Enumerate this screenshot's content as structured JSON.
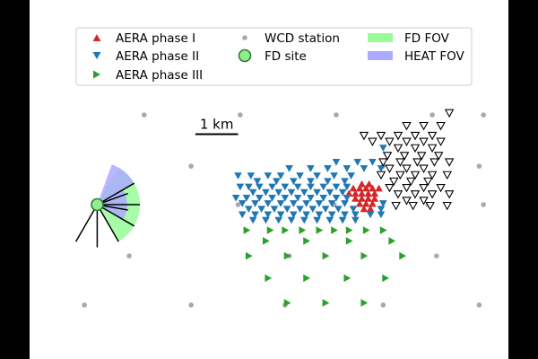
{
  "chart_data": {
    "type": "scatter",
    "units": "km",
    "xlim": [
      -6.35,
      4.1
    ],
    "ylim": [
      -3.0,
      3.0
    ],
    "scale_bar": {
      "label": "1 km",
      "length_km": 1.0,
      "x": -2.85,
      "y": 1.65
    },
    "legend": {
      "placement": "top",
      "entries": [
        {
          "label": "AERA phase I",
          "key": "phase1"
        },
        {
          "label": "AERA phase II",
          "key": "phase2"
        },
        {
          "label": "AERA phase III",
          "key": "phase3"
        },
        {
          "label": "WCD station",
          "key": "wcd"
        },
        {
          "label": "FD site",
          "key": "fd"
        },
        {
          "label": "",
          "key": "blank"
        },
        {
          "label": "FD FOV",
          "key": "fdfov"
        },
        {
          "label": "HEAT FOV",
          "key": "heatfov"
        }
      ]
    },
    "colors": {
      "phase1": "#d62728",
      "phase2": "#1f77b4",
      "phase3": "#2ca02c",
      "outline": "#000000",
      "wcd": "#aaaaaa",
      "fd_site": "#90ee90",
      "fd_fov": "#98fb98",
      "heat_fov": "#aaaaff",
      "fd_lines": "#000000"
    },
    "fd_site": {
      "x": -5.15,
      "y": 0.0
    },
    "fd_fov": {
      "radius": 1.0,
      "from_deg": -60,
      "to_deg": 60
    },
    "heat_fov": {
      "radius": 0.7,
      "from_deg": 30,
      "to_deg": 70,
      "inner_radius": 0.7,
      "inner_from_deg": -30,
      "inner_to_deg": 30
    },
    "fd_bays_deg": [
      -120,
      -90,
      -60,
      -30,
      0,
      30
    ],
    "fd_bay_length": 1.0,
    "wcd_stations": [
      {
        "x": -4.05,
        "y": 2.1
      },
      {
        "x": -1.8,
        "y": 2.1
      },
      {
        "x": 0.45,
        "y": 2.1
      },
      {
        "x": 2.7,
        "y": 2.1
      },
      {
        "x": 3.9,
        "y": 2.1
      },
      {
        "x": -2.95,
        "y": 0.9
      },
      {
        "x": 1.55,
        "y": 0.9
      },
      {
        "x": 3.8,
        "y": 0.9
      },
      {
        "x": -1.85,
        "y": 0.0
      },
      {
        "x": 0.4,
        "y": 0.0
      },
      {
        "x": 2.6,
        "y": 0.0
      },
      {
        "x": 3.9,
        "y": 0.0
      },
      {
        "x": -4.4,
        "y": -1.2
      },
      {
        "x": -0.65,
        "y": -1.2
      },
      {
        "x": 2.8,
        "y": -1.2
      },
      {
        "x": -5.45,
        "y": -2.35
      },
      {
        "x": -2.95,
        "y": -2.35
      },
      {
        "x": -0.75,
        "y": -2.35
      },
      {
        "x": 1.55,
        "y": -2.35
      },
      {
        "x": 3.8,
        "y": -2.35
      }
    ],
    "series": [
      {
        "key": "phase1",
        "marker": "triangle-up",
        "points": [
          {
            "x": 1.05,
            "y": 0.48
          },
          {
            "x": 1.22,
            "y": 0.48
          },
          {
            "x": 0.85,
            "y": 0.38
          },
          {
            "x": 1.0,
            "y": 0.38
          },
          {
            "x": 1.15,
            "y": 0.38
          },
          {
            "x": 1.3,
            "y": 0.38
          },
          {
            "x": 1.45,
            "y": 0.38
          },
          {
            "x": 0.75,
            "y": 0.26
          },
          {
            "x": 0.9,
            "y": 0.26
          },
          {
            "x": 1.05,
            "y": 0.26
          },
          {
            "x": 1.2,
            "y": 0.26
          },
          {
            "x": 1.35,
            "y": 0.26
          },
          {
            "x": 0.9,
            "y": 0.14
          },
          {
            "x": 1.05,
            "y": 0.14
          },
          {
            "x": 1.2,
            "y": 0.14
          },
          {
            "x": 1.35,
            "y": 0.14
          },
          {
            "x": 1.0,
            "y": 0.02
          },
          {
            "x": 1.15,
            "y": 0.02
          },
          {
            "x": 1.3,
            "y": 0.02
          },
          {
            "x": 1.1,
            "y": -0.1
          },
          {
            "x": 1.25,
            "y": -0.1
          }
        ]
      },
      {
        "key": "phase2",
        "marker": "triangle-down",
        "points": [
          {
            "x": 1.55,
            "y": 1.33
          },
          {
            "x": 0.45,
            "y": 1.0
          },
          {
            "x": 0.95,
            "y": 1.0
          },
          {
            "x": 1.3,
            "y": 1.0
          },
          {
            "x": -0.65,
            "y": 0.85
          },
          {
            "x": -0.15,
            "y": 0.85
          },
          {
            "x": 0.25,
            "y": 0.85
          },
          {
            "x": 0.7,
            "y": 0.85
          },
          {
            "x": 1.1,
            "y": 0.85
          },
          {
            "x": 1.5,
            "y": 0.85
          },
          {
            "x": -1.85,
            "y": 0.68
          },
          {
            "x": -1.55,
            "y": 0.68
          },
          {
            "x": -1.15,
            "y": 0.68
          },
          {
            "x": -0.85,
            "y": 0.68
          },
          {
            "x": -0.4,
            "y": 0.68
          },
          {
            "x": 0.0,
            "y": 0.68
          },
          {
            "x": 0.4,
            "y": 0.68
          },
          {
            "x": 0.8,
            "y": 0.68
          },
          {
            "x": -1.4,
            "y": 0.55
          },
          {
            "x": -0.95,
            "y": 0.55
          },
          {
            "x": -0.55,
            "y": 0.55
          },
          {
            "x": -0.15,
            "y": 0.55
          },
          {
            "x": 0.25,
            "y": 0.55
          },
          {
            "x": 0.65,
            "y": 0.55
          },
          {
            "x": -1.8,
            "y": 0.42
          },
          {
            "x": -1.6,
            "y": 0.42
          },
          {
            "x": -1.35,
            "y": 0.42
          },
          {
            "x": -1.05,
            "y": 0.42
          },
          {
            "x": -0.75,
            "y": 0.42
          },
          {
            "x": -0.45,
            "y": 0.42
          },
          {
            "x": -0.15,
            "y": 0.42
          },
          {
            "x": 0.15,
            "y": 0.42
          },
          {
            "x": 0.45,
            "y": 0.42
          },
          {
            "x": 0.7,
            "y": 0.42
          },
          {
            "x": -1.5,
            "y": 0.29
          },
          {
            "x": -1.2,
            "y": 0.29
          },
          {
            "x": -0.9,
            "y": 0.29
          },
          {
            "x": -0.6,
            "y": 0.29
          },
          {
            "x": -0.3,
            "y": 0.29
          },
          {
            "x": 0.0,
            "y": 0.29
          },
          {
            "x": 0.3,
            "y": 0.29
          },
          {
            "x": 0.6,
            "y": 0.29
          },
          {
            "x": -1.9,
            "y": 0.16
          },
          {
            "x": -1.65,
            "y": 0.16
          },
          {
            "x": -1.35,
            "y": 0.16
          },
          {
            "x": -1.05,
            "y": 0.16
          },
          {
            "x": -0.75,
            "y": 0.16
          },
          {
            "x": -0.45,
            "y": 0.16
          },
          {
            "x": -0.15,
            "y": 0.16
          },
          {
            "x": 0.15,
            "y": 0.16
          },
          {
            "x": 0.45,
            "y": 0.16
          },
          {
            "x": 0.7,
            "y": 0.16
          },
          {
            "x": -1.75,
            "y": 0.03
          },
          {
            "x": -1.45,
            "y": 0.03
          },
          {
            "x": -1.15,
            "y": 0.03
          },
          {
            "x": -0.85,
            "y": 0.03
          },
          {
            "x": -0.55,
            "y": 0.03
          },
          {
            "x": -0.25,
            "y": 0.03
          },
          {
            "x": 0.05,
            "y": 0.03
          },
          {
            "x": 0.35,
            "y": 0.03
          },
          {
            "x": 0.65,
            "y": 0.03
          },
          {
            "x": 1.55,
            "y": 0.03
          },
          {
            "x": -1.6,
            "y": -0.1
          },
          {
            "x": -1.3,
            "y": -0.1
          },
          {
            "x": -1.0,
            "y": -0.1
          },
          {
            "x": -0.7,
            "y": -0.1
          },
          {
            "x": -0.4,
            "y": -0.1
          },
          {
            "x": -0.1,
            "y": -0.1
          },
          {
            "x": 0.2,
            "y": -0.1
          },
          {
            "x": 0.5,
            "y": -0.1
          },
          {
            "x": 0.85,
            "y": -0.1
          },
          {
            "x": 1.5,
            "y": -0.1
          },
          {
            "x": -1.75,
            "y": -0.23
          },
          {
            "x": -1.45,
            "y": -0.23
          },
          {
            "x": -1.15,
            "y": -0.23
          },
          {
            "x": -0.85,
            "y": -0.23
          },
          {
            "x": -0.55,
            "y": -0.23
          },
          {
            "x": -0.25,
            "y": -0.23
          },
          {
            "x": 0.05,
            "y": -0.23
          },
          {
            "x": 0.35,
            "y": -0.23
          },
          {
            "x": 0.65,
            "y": -0.23
          },
          {
            "x": 0.9,
            "y": -0.23
          },
          {
            "x": 1.25,
            "y": -0.23
          },
          {
            "x": 1.5,
            "y": -0.23
          },
          {
            "x": -1.5,
            "y": -0.36
          },
          {
            "x": -1.2,
            "y": -0.36
          },
          {
            "x": -0.9,
            "y": -0.36
          },
          {
            "x": -0.6,
            "y": -0.36
          },
          {
            "x": -0.3,
            "y": -0.36
          },
          {
            "x": 0.0,
            "y": -0.36
          },
          {
            "x": 0.3,
            "y": -0.36
          },
          {
            "x": 0.6,
            "y": -0.36
          },
          {
            "x": 0.9,
            "y": -0.36
          }
        ]
      },
      {
        "key": "phase3",
        "marker": "triangle-right",
        "points": [
          {
            "x": -1.65,
            "y": -0.6
          },
          {
            "x": -1.1,
            "y": -0.6
          },
          {
            "x": -0.75,
            "y": -0.6
          },
          {
            "x": -0.35,
            "y": -0.6
          },
          {
            "x": 0.05,
            "y": -0.6
          },
          {
            "x": 0.4,
            "y": -0.6
          },
          {
            "x": 0.75,
            "y": -0.6
          },
          {
            "x": 1.15,
            "y": -0.6
          },
          {
            "x": 1.55,
            "y": -0.6
          },
          {
            "x": -1.2,
            "y": -0.85
          },
          {
            "x": -0.25,
            "y": -0.85
          },
          {
            "x": 0.75,
            "y": -0.85
          },
          {
            "x": 1.75,
            "y": -0.85
          },
          {
            "x": -1.6,
            "y": -1.2
          },
          {
            "x": -0.7,
            "y": -1.2
          },
          {
            "x": 0.2,
            "y": -1.2
          },
          {
            "x": 1.1,
            "y": -1.2
          },
          {
            "x": 2.0,
            "y": -1.2
          },
          {
            "x": -1.15,
            "y": -1.72
          },
          {
            "x": -0.25,
            "y": -1.72
          },
          {
            "x": 0.7,
            "y": -1.72
          },
          {
            "x": 1.6,
            "y": -1.72
          },
          {
            "x": -0.7,
            "y": -2.3
          },
          {
            "x": 0.2,
            "y": -2.3
          },
          {
            "x": 1.1,
            "y": -2.3
          }
        ]
      },
      {
        "key": "outline",
        "marker": "triangle-down-open",
        "points": [
          {
            "x": 3.1,
            "y": 2.15
          },
          {
            "x": 2.1,
            "y": 1.85
          },
          {
            "x": 2.5,
            "y": 1.85
          },
          {
            "x": 2.9,
            "y": 1.85
          },
          {
            "x": 1.1,
            "y": 1.62
          },
          {
            "x": 1.5,
            "y": 1.62
          },
          {
            "x": 1.9,
            "y": 1.62
          },
          {
            "x": 2.3,
            "y": 1.62
          },
          {
            "x": 2.7,
            "y": 1.62
          },
          {
            "x": 1.3,
            "y": 1.48
          },
          {
            "x": 1.7,
            "y": 1.48
          },
          {
            "x": 2.1,
            "y": 1.48
          },
          {
            "x": 2.5,
            "y": 1.48
          },
          {
            "x": 2.9,
            "y": 1.48
          },
          {
            "x": 1.9,
            "y": 1.33
          },
          {
            "x": 2.3,
            "y": 1.33
          },
          {
            "x": 2.7,
            "y": 1.33
          },
          {
            "x": 1.65,
            "y": 1.15
          },
          {
            "x": 2.05,
            "y": 1.15
          },
          {
            "x": 2.45,
            "y": 1.15
          },
          {
            "x": 2.85,
            "y": 1.15
          },
          {
            "x": 1.55,
            "y": 1.0
          },
          {
            "x": 1.95,
            "y": 1.0
          },
          {
            "x": 2.35,
            "y": 1.0
          },
          {
            "x": 2.75,
            "y": 1.0
          },
          {
            "x": 3.1,
            "y": 1.0
          },
          {
            "x": 1.7,
            "y": 0.85
          },
          {
            "x": 2.1,
            "y": 0.85
          },
          {
            "x": 2.5,
            "y": 0.85
          },
          {
            "x": 1.5,
            "y": 0.7
          },
          {
            "x": 1.95,
            "y": 0.7
          },
          {
            "x": 2.3,
            "y": 0.7
          },
          {
            "x": 2.7,
            "y": 0.7
          },
          {
            "x": 3.05,
            "y": 0.7
          },
          {
            "x": 1.8,
            "y": 0.55
          },
          {
            "x": 2.2,
            "y": 0.55
          },
          {
            "x": 2.6,
            "y": 0.55
          },
          {
            "x": 1.7,
            "y": 0.4
          },
          {
            "x": 2.1,
            "y": 0.4
          },
          {
            "x": 2.5,
            "y": 0.4
          },
          {
            "x": 2.9,
            "y": 0.4
          },
          {
            "x": 1.9,
            "y": 0.25
          },
          {
            "x": 2.3,
            "y": 0.25
          },
          {
            "x": 2.7,
            "y": 0.25
          },
          {
            "x": 3.1,
            "y": 0.25
          },
          {
            "x": 2.1,
            "y": 0.1
          },
          {
            "x": 2.5,
            "y": 0.1
          },
          {
            "x": 1.85,
            "y": -0.02
          },
          {
            "x": 2.25,
            "y": -0.02
          },
          {
            "x": 2.65,
            "y": -0.02
          },
          {
            "x": 3.05,
            "y": -0.02
          }
        ]
      }
    ]
  }
}
